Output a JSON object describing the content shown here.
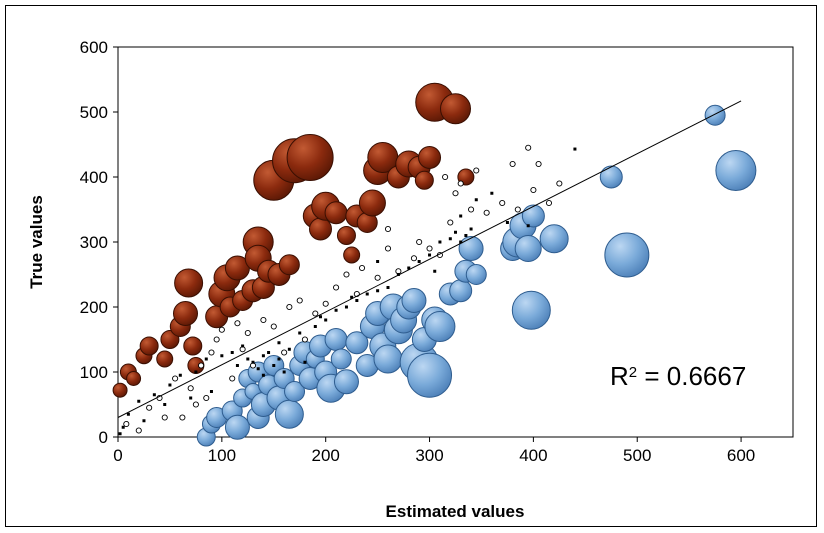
{
  "chart_data": {
    "type": "scatter",
    "xlabel": "Estimated values",
    "ylabel": "True values",
    "xlim": [
      0,
      650
    ],
    "ylim": [
      0,
      600
    ],
    "xticks": [
      0,
      100,
      200,
      300,
      400,
      500,
      600
    ],
    "yticks": [
      0,
      100,
      200,
      300,
      400,
      500,
      600
    ],
    "grid": false,
    "annotation": {
      "prefix": "R",
      "sup": "2",
      "suffix": " = 0.6667"
    },
    "colors": {
      "under_estimate": "#8b2a0e",
      "over_estimate": "#7aaad9",
      "small_points": "#000000",
      "trendline": "#000000"
    },
    "trendline": {
      "x": [
        0,
        600
      ],
      "y": [
        30,
        517
      ]
    },
    "series": [
      {
        "marker": "bubble-dark-red",
        "points": [
          [
            2,
            72,
            7
          ],
          [
            10,
            100,
            8
          ],
          [
            15,
            90,
            7
          ],
          [
            25,
            125,
            8
          ],
          [
            30,
            140,
            9
          ],
          [
            45,
            120,
            8
          ],
          [
            50,
            150,
            9
          ],
          [
            60,
            170,
            10
          ],
          [
            65,
            190,
            12
          ],
          [
            68,
            237,
            14
          ],
          [
            72,
            140,
            9
          ],
          [
            75,
            110,
            8
          ],
          [
            95,
            185,
            11
          ],
          [
            100,
            220,
            13
          ],
          [
            105,
            245,
            13
          ],
          [
            108,
            200,
            10
          ],
          [
            115,
            260,
            12
          ],
          [
            120,
            210,
            10
          ],
          [
            130,
            225,
            11
          ],
          [
            135,
            300,
            15
          ],
          [
            135,
            275,
            13
          ],
          [
            140,
            230,
            11
          ],
          [
            145,
            255,
            11
          ],
          [
            150,
            395,
            20
          ],
          [
            155,
            250,
            11
          ],
          [
            165,
            265,
            10
          ],
          [
            170,
            425,
            22
          ],
          [
            185,
            430,
            23
          ],
          [
            190,
            340,
            12
          ],
          [
            195,
            320,
            11
          ],
          [
            200,
            355,
            14
          ],
          [
            210,
            345,
            11
          ],
          [
            220,
            310,
            9
          ],
          [
            225,
            280,
            8
          ],
          [
            230,
            340,
            11
          ],
          [
            240,
            330,
            10
          ],
          [
            245,
            360,
            13
          ],
          [
            250,
            410,
            14
          ],
          [
            255,
            430,
            15
          ],
          [
            270,
            400,
            11
          ],
          [
            280,
            420,
            13
          ],
          [
            290,
            415,
            11
          ],
          [
            295,
            395,
            9
          ],
          [
            300,
            430,
            11
          ],
          [
            305,
            515,
            19
          ],
          [
            325,
            505,
            15
          ],
          [
            335,
            400,
            8
          ]
        ]
      },
      {
        "marker": "bubble-light-blue",
        "points": [
          [
            85,
            0,
            9
          ],
          [
            90,
            20,
            9
          ],
          [
            95,
            30,
            10
          ],
          [
            110,
            40,
            10
          ],
          [
            115,
            15,
            12
          ],
          [
            120,
            60,
            9
          ],
          [
            125,
            90,
            9
          ],
          [
            130,
            70,
            8
          ],
          [
            135,
            30,
            11
          ],
          [
            135,
            100,
            10
          ],
          [
            140,
            50,
            12
          ],
          [
            145,
            80,
            10
          ],
          [
            150,
            110,
            10
          ],
          [
            155,
            60,
            12
          ],
          [
            160,
            90,
            10
          ],
          [
            165,
            35,
            14
          ],
          [
            170,
            70,
            10
          ],
          [
            175,
            110,
            10
          ],
          [
            180,
            130,
            11
          ],
          [
            185,
            90,
            11
          ],
          [
            190,
            120,
            9
          ],
          [
            195,
            140,
            11
          ],
          [
            200,
            100,
            11
          ],
          [
            205,
            75,
            14
          ],
          [
            210,
            150,
            11
          ],
          [
            215,
            120,
            10
          ],
          [
            220,
            85,
            12
          ],
          [
            230,
            145,
            11
          ],
          [
            240,
            110,
            11
          ],
          [
            245,
            170,
            12
          ],
          [
            250,
            190,
            12
          ],
          [
            255,
            140,
            13
          ],
          [
            260,
            120,
            14
          ],
          [
            265,
            200,
            13
          ],
          [
            270,
            165,
            14
          ],
          [
            275,
            180,
            13
          ],
          [
            280,
            200,
            12
          ],
          [
            285,
            210,
            12
          ],
          [
            290,
            115,
            19
          ],
          [
            295,
            150,
            12
          ],
          [
            300,
            95,
            22
          ],
          [
            305,
            180,
            13
          ],
          [
            310,
            170,
            15
          ],
          [
            320,
            220,
            11
          ],
          [
            330,
            225,
            11
          ],
          [
            335,
            255,
            11
          ],
          [
            340,
            290,
            12
          ],
          [
            345,
            250,
            10
          ],
          [
            380,
            290,
            12
          ],
          [
            385,
            300,
            15
          ],
          [
            390,
            325,
            13
          ],
          [
            395,
            290,
            13
          ],
          [
            398,
            195,
            19
          ],
          [
            400,
            340,
            11
          ],
          [
            420,
            305,
            14
          ],
          [
            475,
            400,
            11
          ],
          [
            490,
            280,
            22
          ],
          [
            575,
            495,
            10
          ],
          [
            595,
            410,
            20
          ]
        ]
      },
      {
        "marker": "open-circle",
        "points": [
          [
            8,
            20
          ],
          [
            20,
            10
          ],
          [
            30,
            45
          ],
          [
            40,
            60
          ],
          [
            55,
            90
          ],
          [
            62,
            30
          ],
          [
            70,
            75
          ],
          [
            80,
            110
          ],
          [
            90,
            130
          ],
          [
            95,
            150
          ],
          [
            100,
            165
          ],
          [
            115,
            175
          ],
          [
            125,
            160
          ],
          [
            140,
            180
          ],
          [
            150,
            170
          ],
          [
            165,
            200
          ],
          [
            175,
            210
          ],
          [
            190,
            190
          ],
          [
            210,
            230
          ],
          [
            220,
            250
          ],
          [
            235,
            260
          ],
          [
            250,
            245
          ],
          [
            270,
            255
          ],
          [
            285,
            275
          ],
          [
            300,
            290
          ],
          [
            320,
            330
          ],
          [
            340,
            350
          ],
          [
            355,
            345
          ],
          [
            370,
            360
          ],
          [
            385,
            350
          ],
          [
            400,
            380
          ],
          [
            405,
            420
          ],
          [
            415,
            360
          ],
          [
            425,
            390
          ],
          [
            380,
            420
          ],
          [
            395,
            445
          ],
          [
            330,
            390
          ],
          [
            345,
            410
          ],
          [
            290,
            300
          ],
          [
            260,
            320
          ],
          [
            310,
            280
          ],
          [
            200,
            205
          ],
          [
            180,
            150
          ],
          [
            160,
            130
          ],
          [
            130,
            110
          ],
          [
            110,
            90
          ],
          [
            75,
            50
          ],
          [
            45,
            30
          ],
          [
            85,
            60
          ],
          [
            120,
            135
          ],
          [
            230,
            220
          ],
          [
            260,
            290
          ],
          [
            315,
            400
          ],
          [
            325,
            375
          ]
        ]
      },
      {
        "marker": "small-dot",
        "points": [
          [
            2,
            5
          ],
          [
            5,
            15
          ],
          [
            10,
            35
          ],
          [
            20,
            55
          ],
          [
            35,
            65
          ],
          [
            50,
            80
          ],
          [
            60,
            95
          ],
          [
            75,
            100
          ],
          [
            85,
            120
          ],
          [
            100,
            125
          ],
          [
            110,
            130
          ],
          [
            120,
            140
          ],
          [
            125,
            120
          ],
          [
            130,
            115
          ],
          [
            135,
            105
          ],
          [
            140,
            125
          ],
          [
            145,
            130
          ],
          [
            150,
            110
          ],
          [
            155,
            120
          ],
          [
            165,
            135
          ],
          [
            175,
            160
          ],
          [
            190,
            170
          ],
          [
            200,
            180
          ],
          [
            210,
            195
          ],
          [
            220,
            200
          ],
          [
            230,
            210
          ],
          [
            240,
            220
          ],
          [
            250,
            225
          ],
          [
            260,
            230
          ],
          [
            270,
            250
          ],
          [
            280,
            260
          ],
          [
            290,
            270
          ],
          [
            300,
            280
          ],
          [
            310,
            300
          ],
          [
            320,
            305
          ],
          [
            325,
            315
          ],
          [
            330,
            300
          ],
          [
            335,
            310
          ],
          [
            340,
            320
          ],
          [
            330,
            340
          ],
          [
            345,
            365
          ],
          [
            360,
            375
          ],
          [
            375,
            330
          ],
          [
            395,
            325
          ],
          [
            440,
            443
          ],
          [
            225,
            215
          ],
          [
            195,
            185
          ],
          [
            155,
            145
          ],
          [
            115,
            110
          ],
          [
            90,
            70
          ],
          [
            70,
            60
          ],
          [
            45,
            50
          ],
          [
            25,
            25
          ],
          [
            140,
            95
          ],
          [
            160,
            100
          ],
          [
            180,
            115
          ],
          [
            250,
            270
          ],
          [
            305,
            255
          ]
        ]
      }
    ]
  }
}
